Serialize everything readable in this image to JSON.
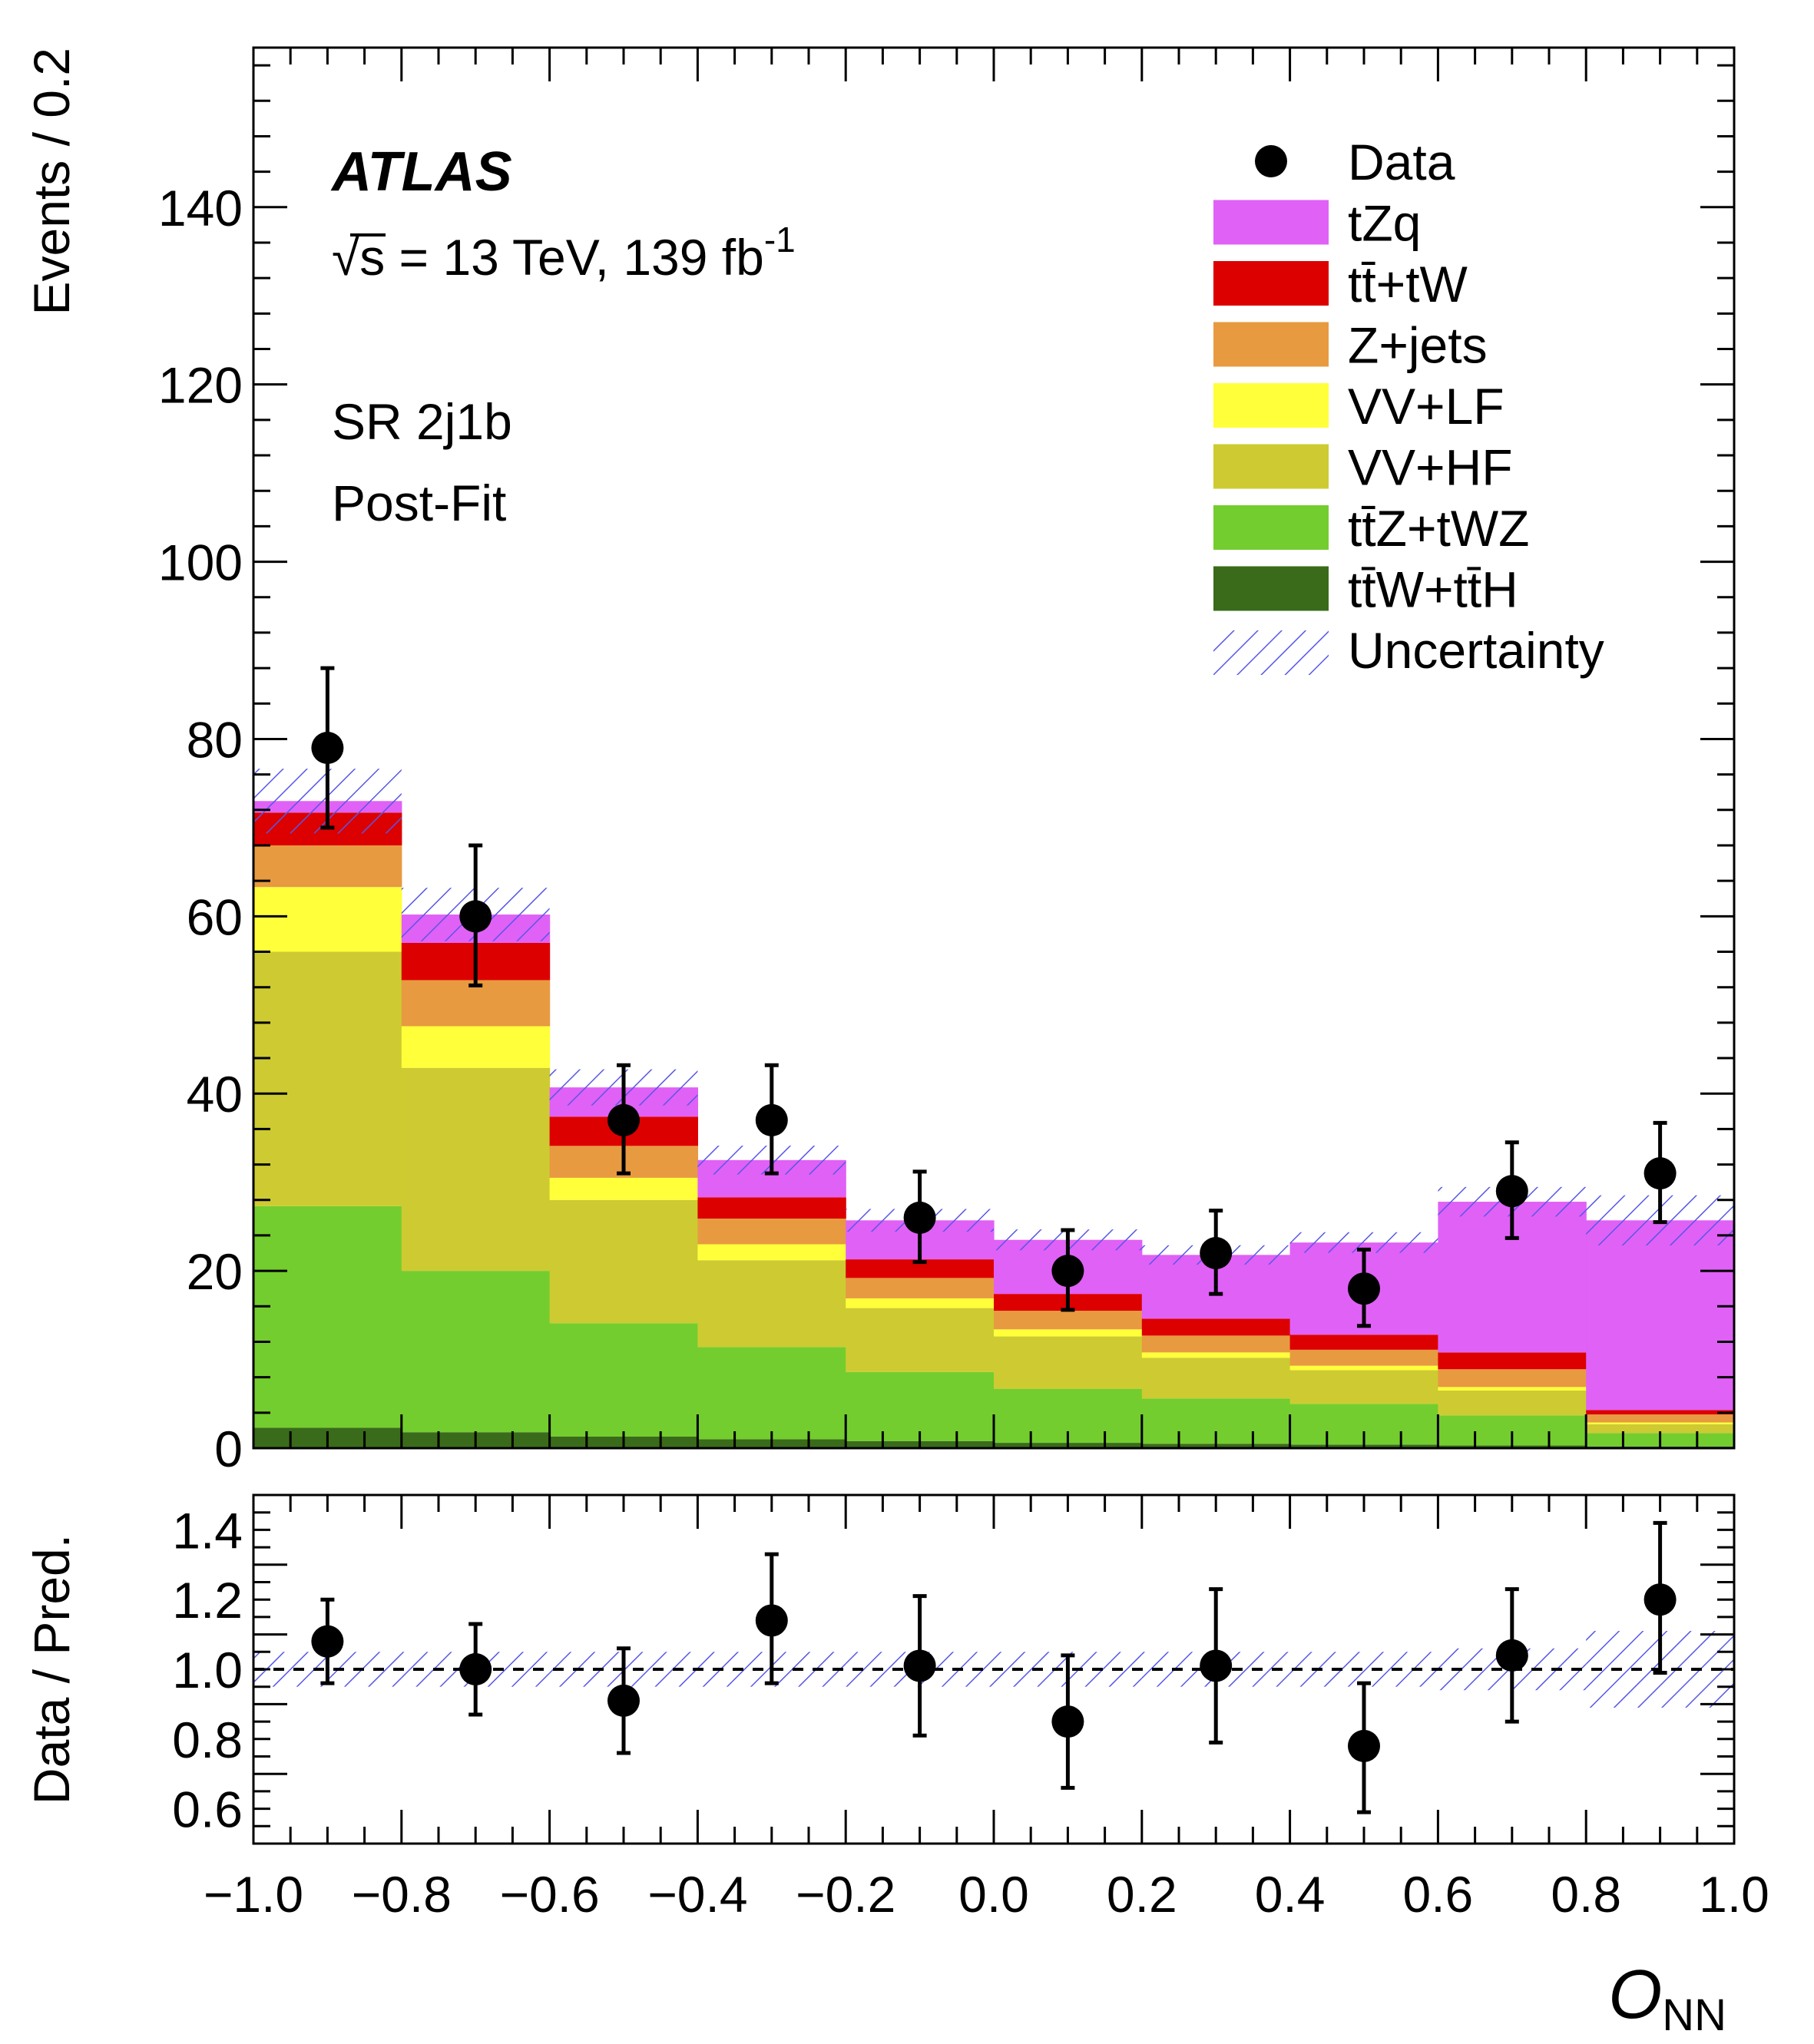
{
  "chart_data": [
    {
      "type": "stacked-histogram",
      "ylabel": "Events / 0.2",
      "ylim": [
        0,
        158
      ],
      "xlim": [
        -1.0,
        1.0
      ],
      "yticks": [
        "0",
        "20",
        "40",
        "60",
        "80",
        "100",
        "120",
        "140"
      ],
      "atlas_label": "ATLAS",
      "energy_label": "√s = 13 TeV, 139 fb",
      "energy_superscript": "-1",
      "region_label": "SR 2j1b",
      "fit_label": "Post-Fit",
      "bin_edges": [
        -1.0,
        -0.8,
        -0.6,
        -0.4,
        -0.2,
        0.0,
        0.2,
        0.4,
        0.6,
        0.8,
        1.0
      ],
      "series": [
        {
          "name": "ttW+ttH",
          "color": "#3a6b1a",
          "values": [
            2.3,
            1.8,
            1.3,
            1.0,
            0.8,
            0.6,
            0.5,
            0.4,
            0.3,
            0.2
          ]
        },
        {
          "name": "ttZ+tWZ",
          "color": "#74cd2e",
          "values": [
            25.0,
            18.2,
            12.8,
            10.4,
            7.8,
            6.1,
            5.1,
            4.6,
            3.4,
            1.5
          ]
        },
        {
          "name": "VV+HF",
          "color": "#cdcb31",
          "values": [
            28.7,
            22.9,
            13.9,
            9.8,
            7.2,
            5.9,
            4.6,
            3.8,
            2.8,
            1.0
          ]
        },
        {
          "name": "VV+LF",
          "color": "#ffff3a",
          "values": [
            7.3,
            4.7,
            2.5,
            1.8,
            1.1,
            0.8,
            0.6,
            0.5,
            0.4,
            0.2
          ]
        },
        {
          "name": "Z+jets",
          "color": "#e89a40",
          "values": [
            4.7,
            5.2,
            3.6,
            2.9,
            2.3,
            2.1,
            1.9,
            1.8,
            2.0,
            0.9
          ]
        },
        {
          "name": "tt+tW",
          "color": "#dc0000",
          "values": [
            3.7,
            4.2,
            3.3,
            2.4,
            2.1,
            1.9,
            1.9,
            1.7,
            1.9,
            0.5
          ]
        },
        {
          "name": "tZq",
          "color": "#e061f6",
          "values": [
            1.3,
            3.2,
            3.3,
            4.2,
            4.4,
            6.1,
            7.2,
            10.4,
            17.0,
            21.4
          ]
        }
      ],
      "total_prediction": [
        73.0,
        60.2,
        40.7,
        32.5,
        25.7,
        23.5,
        21.8,
        23.2,
        27.8,
        25.7
      ],
      "uncertainty_fraction": [
        0.05,
        0.05,
        0.05,
        0.05,
        0.05,
        0.05,
        0.05,
        0.05,
        0.06,
        0.11
      ],
      "data": {
        "name": "Data",
        "x": [
          -0.9,
          -0.7,
          -0.5,
          -0.3,
          -0.1,
          0.1,
          0.3,
          0.5,
          0.7,
          0.9
        ],
        "y": [
          79,
          60,
          37,
          37,
          26,
          20,
          22,
          18,
          29,
          31
        ],
        "err_up": [
          9,
          8,
          6.2,
          6.2,
          5.2,
          4.6,
          4.8,
          4.4,
          5.5,
          5.7
        ],
        "err_down": [
          9,
          7.8,
          6.0,
          6.0,
          5.0,
          4.4,
          4.6,
          4.2,
          5.3,
          5.5
        ]
      },
      "legend": {
        "placement": "top-right",
        "entries": [
          "Data",
          "tZq",
          "tt̄+tW",
          "Z+jets",
          "VV+LF",
          "VV+HF",
          "tt̄Z+tWZ",
          "tt̄W+tt̄H",
          "Uncertainty"
        ]
      }
    },
    {
      "type": "ratio",
      "ylabel": "Data / Pred.",
      "ylim": [
        0.5,
        1.5
      ],
      "yticks": [
        "0.6",
        "0.8",
        "1.0",
        "1.2",
        "1.4"
      ],
      "xlim": [
        -1.0,
        1.0
      ],
      "xticks": [
        "−1.0",
        "−0.8",
        "−0.6",
        "−0.4",
        "−0.2",
        "0.0",
        "0.2",
        "0.4",
        "0.6",
        "0.8",
        "1.0"
      ],
      "xlabel_main": "O",
      "xlabel_sub": "NN",
      "reference_line": 1.0,
      "points": {
        "x": [
          -0.9,
          -0.7,
          -0.5,
          -0.3,
          -0.1,
          0.1,
          0.3,
          0.5,
          0.7,
          0.9
        ],
        "y": [
          1.08,
          1.0,
          0.91,
          1.14,
          1.01,
          0.85,
          1.01,
          0.78,
          1.04,
          1.2
        ],
        "err_up": [
          0.12,
          0.13,
          0.15,
          0.19,
          0.2,
          0.19,
          0.22,
          0.18,
          0.19,
          0.22
        ],
        "err_down": [
          0.12,
          0.13,
          0.15,
          0.18,
          0.2,
          0.19,
          0.22,
          0.19,
          0.19,
          0.21
        ]
      },
      "uncertainty_fraction": [
        0.05,
        0.05,
        0.05,
        0.05,
        0.05,
        0.05,
        0.05,
        0.05,
        0.06,
        0.11
      ]
    }
  ]
}
